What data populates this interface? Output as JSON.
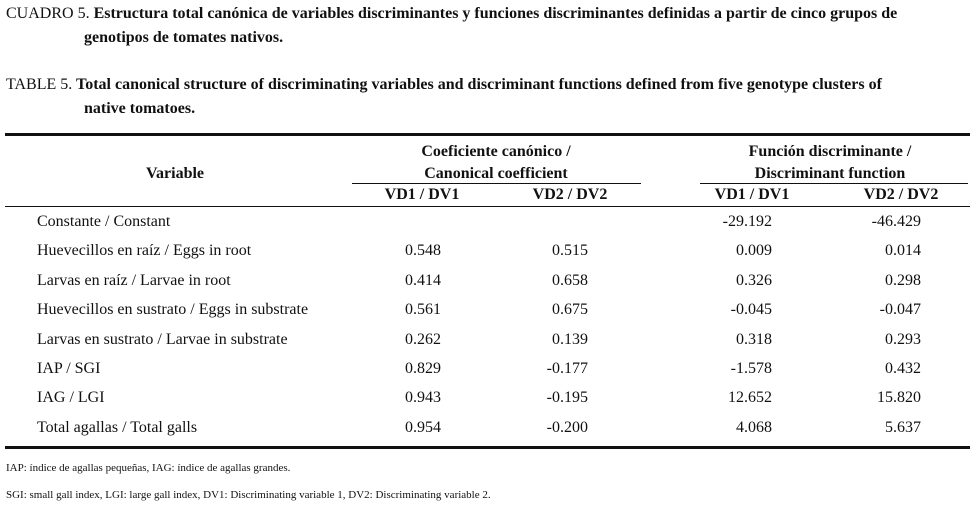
{
  "caption_es": {
    "label": "CUADRO 5.",
    "text": "Estructura total canónica de variables discriminantes y funciones discriminantes definidas a partir de cinco grupos de",
    "text2": "genotipos de tomates nativos."
  },
  "caption_en": {
    "label": "TABLE 5.",
    "text": "Total canonical structure of discriminating variables and discriminant functions defined from five genotype clusters of",
    "text2": "native tomatoes."
  },
  "table": {
    "variable_header": "Variable",
    "group1": [
      "Coeficiente canónico /",
      "Canonical coefficient"
    ],
    "group2": [
      "Función discriminante /",
      "Discriminant function"
    ],
    "subheaders": [
      "VD1 / DV1",
      "VD2 / DV2",
      "VD1 / DV1",
      "VD2 / DV2"
    ],
    "rows": [
      {
        "label": "Constante / Constant",
        "values": [
          "",
          "",
          "-29.192",
          "-46.429"
        ]
      },
      {
        "label": "Huevecillos en raíz / Eggs in root",
        "values": [
          "0.548",
          "0.515",
          "0.009",
          "0.014"
        ]
      },
      {
        "label": "Larvas en raíz / Larvae in root",
        "values": [
          "0.414",
          "0.658",
          "0.326",
          "0.298"
        ]
      },
      {
        "label": "Huevecillos en sustrato / Eggs in substrate",
        "values": [
          "0.561",
          "0.675",
          "-0.045",
          "-0.047"
        ]
      },
      {
        "label": "Larvas en sustrato / Larvae in substrate",
        "values": [
          "0.262",
          "0.139",
          "0.318",
          "0.293"
        ]
      },
      {
        "label": "IAP / SGI",
        "values": [
          "0.829",
          "-0.177",
          "-1.578",
          "0.432"
        ]
      },
      {
        "label": "IAG / LGI",
        "values": [
          "0.943",
          "-0.195",
          "12.652",
          "15.820"
        ]
      },
      {
        "label": "Total agallas / Total galls",
        "values": [
          "0.954",
          "-0.200",
          "4.068",
          "5.637"
        ]
      }
    ]
  },
  "footnotes": [
    "IAP: índice de agallas pequeñas, IAG: índice de agallas grandes.",
    "SGI: small gall index, LGI: large gall index, DV1: Discriminating variable 1, DV2: Discriminating variable 2."
  ]
}
